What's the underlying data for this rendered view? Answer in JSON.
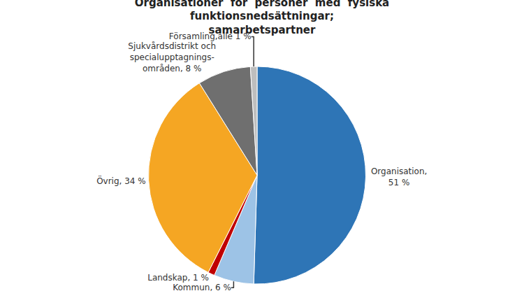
{
  "chart_data": {
    "type": "pie",
    "title": "Organisationer  för  personer  med  fysiska\nfunktionsnedsättningar;\nsamarbetspartner",
    "categories": [
      "Organisation,\n51 %",
      "Kommun, 6 %",
      "Landskap, 1 %",
      "Övrig, 34 %",
      "Sjukvårdsdistrikt och\nspecialupptagnings-\nområden, 8 %",
      "Församling,alle 1 %"
    ],
    "values": [
      51,
      6,
      1,
      34,
      8,
      1
    ],
    "colors": [
      "#2E75B6",
      "#9DC3E6",
      "#C00000",
      "#F5A623",
      "#6F6F6F",
      "#BEBEBE"
    ]
  }
}
